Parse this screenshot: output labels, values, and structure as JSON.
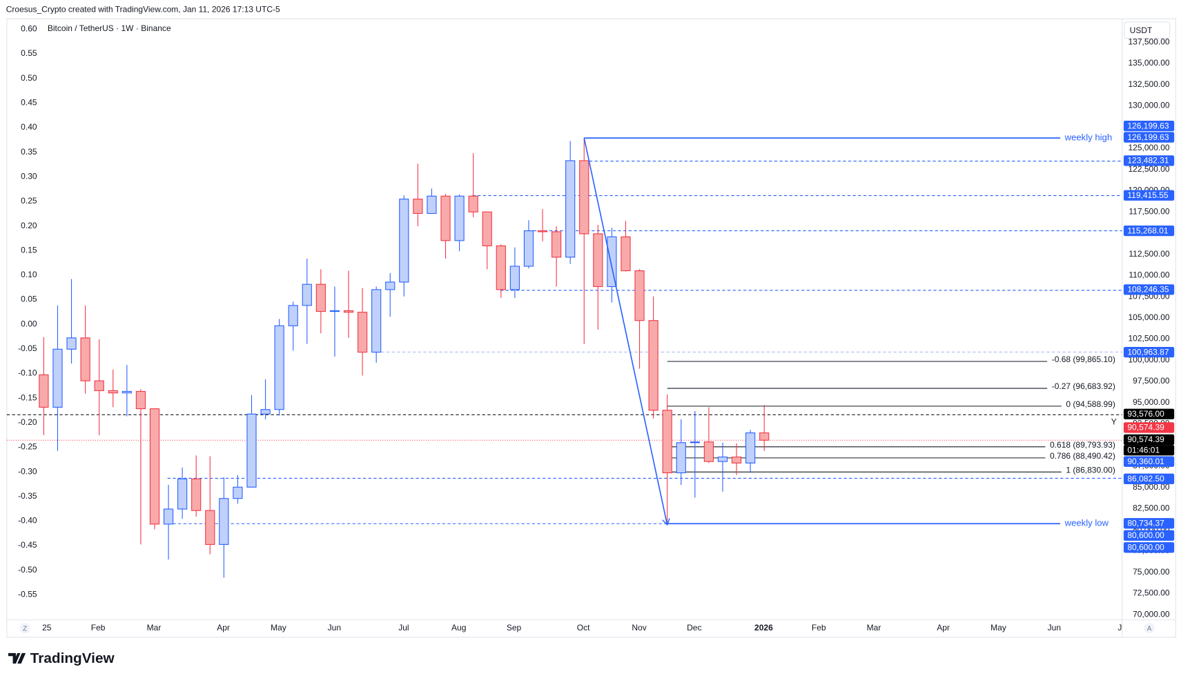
{
  "header": {
    "credit": "Croesus_Crypto created with TradingView.com, Jan 11, 2026 17:13 UTC-5",
    "unit": "USDT",
    "logo": "TradingView",
    "marker": "Y",
    "left_button": "Z",
    "right_button": "A"
  },
  "chart_data": {
    "type": "candlestick",
    "title": "Bitcoin / TetherUS · 1W · Binance",
    "up_color": "#2962ff",
    "up_fill": "#bfd0fb",
    "down_color": "#f23645",
    "down_fill": "#f8aaaa",
    "open": [
      98284,
      94462,
      101307,
      102640,
      97573,
      96417,
      96150,
      96328,
      94284,
      80683,
      82461,
      86016,
      82283,
      78282,
      83705,
      85042,
      93662,
      94195,
      104063,
      106463,
      108953,
      105752,
      105841,
      105663,
      100952,
      108330,
      109219,
      118998,
      117309,
      119354,
      114109,
      119354,
      117487,
      113486,
      108330,
      111087,
      115264,
      115150,
      112153,
      123532,
      114909,
      108686,
      114553,
      110553,
      104685,
      94106,
      86728,
      90283,
      90372,
      88061,
      88594,
      87883,
      91439
    ],
    "high": [
      102730,
      106463,
      109575,
      106463,
      102463,
      98907,
      99440,
      96595,
      94284,
      85305,
      87350,
      88772,
      88683,
      86194,
      86461,
      95884,
      97751,
      104863,
      106908,
      111975,
      110730,
      108686,
      110553,
      108508,
      108686,
      110286,
      119443,
      123176,
      120243,
      119620,
      119531,
      124421,
      117487,
      113664,
      113308,
      116509,
      117842,
      115798,
      125843,
      126199.63,
      115975,
      115620,
      116420,
      110730,
      107530,
      95973,
      93039,
      94017,
      94462,
      90283,
      90194,
      91795,
      94728
    ],
    "low": [
      91172,
      89305,
      99618,
      96062,
      91172,
      94462,
      93395,
      78282,
      80060,
      76504,
      81305,
      81572,
      77126,
      74370,
      83083,
      85042,
      93039,
      93484,
      101130,
      101929,
      103174,
      100418,
      102640,
      98195,
      99707,
      105130,
      107530,
      115798,
      117309,
      111975,
      112864,
      116864,
      110730,
      107352,
      107352,
      110819,
      114020,
      108686,
      111353,
      101929,
      103619,
      106819,
      110464,
      98996,
      93128,
      80600,
      85305,
      83794,
      87883,
      84505,
      86461,
      86728,
      89305
    ],
    "close": [
      94462,
      101307,
      102640,
      97573,
      96417,
      96150,
      96328,
      94284,
      80683,
      82461,
      86016,
      82283,
      78282,
      83705,
      85042,
      93662,
      94195,
      104063,
      106463,
      108953,
      105752,
      105841,
      105663,
      100952,
      108330,
      109219,
      118998,
      117309,
      119354,
      114109,
      119354,
      117487,
      113486,
      108330,
      111087,
      115264,
      115150,
      112153,
      123532,
      114909,
      108686,
      114553,
      110553,
      104685,
      94106,
      86728,
      90283,
      90372,
      88061,
      88594,
      87883,
      91439,
      90574.39
    ],
    "ylim": [
      69391,
      140245
    ],
    "yticks": [
      {
        "value": 70000,
        "label": "70,000.00"
      },
      {
        "value": 72500,
        "label": "72,500.00"
      },
      {
        "value": 75000,
        "label": "75,000.00"
      },
      {
        "value": 77500,
        "label": "77,500.00"
      },
      {
        "value": 80000,
        "label": "80,000.00"
      },
      {
        "value": 82500,
        "label": "82,500.00"
      },
      {
        "value": 85000,
        "label": "85,000.00"
      },
      {
        "value": 87500,
        "label": "87,500.00"
      },
      {
        "value": 90000,
        "label": "90,000.00"
      },
      {
        "value": 92500,
        "label": "92,500.00"
      },
      {
        "value": 95000,
        "label": "95,000.00"
      },
      {
        "value": 97500,
        "label": "97,500.00"
      },
      {
        "value": 100000,
        "label": "100,000.00"
      },
      {
        "value": 102500,
        "label": "102,500.00"
      },
      {
        "value": 105000,
        "label": "105,000.00"
      },
      {
        "value": 107500,
        "label": "107,500.00"
      },
      {
        "value": 110000,
        "label": "110,000.00"
      },
      {
        "value": 112500,
        "label": "112,500.00"
      },
      {
        "value": 115000,
        "label": "115,000.00"
      },
      {
        "value": 117500,
        "label": "117,500.00"
      },
      {
        "value": 120000,
        "label": "120,000.00"
      },
      {
        "value": 122500,
        "label": "122,500.00"
      },
      {
        "value": 125000,
        "label": "125,000.00"
      },
      {
        "value": 127500,
        "label": "127,500.00"
      },
      {
        "value": 130000,
        "label": "130,000.00"
      },
      {
        "value": 132500,
        "label": "132,500.00"
      },
      {
        "value": 135000,
        "label": "135,000.00"
      },
      {
        "value": 137500,
        "label": "137,500.00"
      }
    ],
    "y2lim": [
      -0.601,
      0.621
    ],
    "y2ticks": [
      {
        "value": 0.6,
        "label": "0.60"
      },
      {
        "value": 0.55,
        "label": "0.55"
      },
      {
        "value": 0.5,
        "label": "0.50"
      },
      {
        "value": 0.45,
        "label": "0.45"
      },
      {
        "value": 0.4,
        "label": "0.40"
      },
      {
        "value": 0.35,
        "label": "0.35"
      },
      {
        "value": 0.3,
        "label": "0.30"
      },
      {
        "value": 0.25,
        "label": "0.25"
      },
      {
        "value": 0.2,
        "label": "0.20"
      },
      {
        "value": 0.15,
        "label": "0.15"
      },
      {
        "value": 0.1,
        "label": "0.10"
      },
      {
        "value": 0.05,
        "label": "0.05"
      },
      {
        "value": 0,
        "label": "0.00"
      },
      {
        "value": -0.05,
        "label": "-0.05"
      },
      {
        "value": -0.1,
        "label": "-0.10"
      },
      {
        "value": -0.15,
        "label": "-0.15"
      },
      {
        "value": -0.2,
        "label": "-0.20"
      },
      {
        "value": -0.25,
        "label": "-0.25"
      },
      {
        "value": -0.3,
        "label": "-0.30"
      },
      {
        "value": -0.35,
        "label": "-0.35"
      },
      {
        "value": -0.4,
        "label": "-0.40"
      },
      {
        "value": -0.45,
        "label": "-0.45"
      },
      {
        "value": -0.5,
        "label": "-0.50"
      },
      {
        "value": -0.55,
        "label": "-0.55"
      }
    ],
    "xtick_labels": [
      "25",
      "Feb",
      "Mar",
      "Apr",
      "May",
      "Jun",
      "Jul",
      "Aug",
      "Sep",
      "Oct",
      "Nov",
      "Dec",
      "2026",
      "Feb",
      "Mar",
      "Apr",
      "May",
      "Jun",
      "J"
    ],
    "levels": [
      {
        "value": 126199.63,
        "color": "#2962ff",
        "style": "solid",
        "label": "weekly high"
      },
      {
        "value": 123482.31,
        "color": "#2962ff",
        "style": "dashed"
      },
      {
        "value": 119415.55,
        "color": "#2962ff",
        "style": "dashed"
      },
      {
        "value": 115268.01,
        "color": "#2962ff",
        "style": "dashed"
      },
      {
        "value": 108246.35,
        "color": "#2962ff",
        "style": "dashed"
      },
      {
        "value": 100963.87,
        "color": "#a9bdf0",
        "style": "dashed"
      },
      {
        "value": 93576,
        "color": "#131722",
        "style": "dashed"
      },
      {
        "value": 90574.39,
        "color": "#f23645",
        "style": "dotted"
      },
      {
        "value": 86082.5,
        "color": "#2962ff",
        "style": "dashed"
      },
      {
        "value": 80734.37,
        "color": "#2962ff",
        "style": "dashed",
        "label": "weekly low"
      }
    ],
    "fib": [
      {
        "value": 99865.1,
        "label": "-0.68 (99,865.10)"
      },
      {
        "value": 96683.92,
        "label": "-0.27 (96,683.92)"
      },
      {
        "value": 94588.99,
        "label": "0 (94,588.99)"
      },
      {
        "value": 89793.93,
        "label": "0.618 (89,793.93)"
      },
      {
        "value": 88490.42,
        "label": "0.786 (88,490.42)"
      },
      {
        "value": 86830.0,
        "label": "1 (86,830.00)"
      }
    ],
    "badges": [
      {
        "label": "126,199.63",
        "color": "#2962ff"
      },
      {
        "label": "126,199.63",
        "color": "#2962ff"
      },
      {
        "label": "123,482.31",
        "color": "#2962ff"
      },
      {
        "label": "119,415.55",
        "color": "#2962ff"
      },
      {
        "label": "115,268.01",
        "color": "#2962ff"
      },
      {
        "label": "108,246.35",
        "color": "#2962ff"
      },
      {
        "label": "100,963.87",
        "color": "#2962ff"
      },
      {
        "label": "93,576.00",
        "color": "#000000"
      },
      {
        "label": "90,574.39",
        "color": "#f23645"
      },
      {
        "label": "90,574.39",
        "color": "#000000"
      },
      {
        "label": "01:46:01",
        "color": "#000000"
      },
      {
        "label": "90,360.01",
        "color": "#2962ff"
      },
      {
        "label": "86,082.50",
        "color": "#2962ff"
      },
      {
        "label": "80,734.37",
        "color": "#2962ff"
      },
      {
        "label": "80,600.00",
        "color": "#2962ff"
      },
      {
        "label": "80,600.00",
        "color": "#2962ff"
      }
    ]
  }
}
